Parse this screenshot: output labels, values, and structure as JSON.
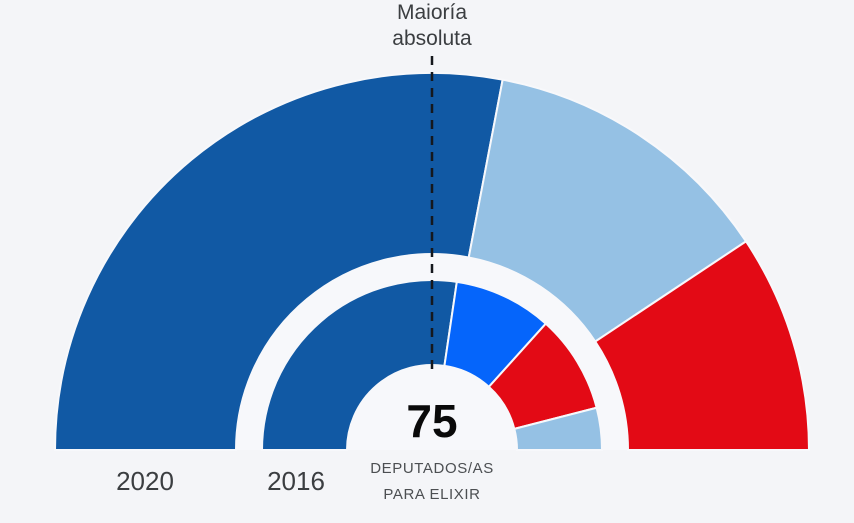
{
  "page": {
    "background": "#f4f5f8"
  },
  "majority": {
    "label": "Maioría absoluta"
  },
  "center": {
    "total": "75",
    "subtitle_line1": "DEPUTADOS/AS",
    "subtitle_line2": "PARA ELIXIR"
  },
  "chart_data": {
    "type": "pie",
    "variant": "parliament-hemicycle-half-donut-two-rings",
    "title": "",
    "total_seats": 75,
    "legend": "none",
    "majority_annotation": {
      "label": "Maioría absoluta",
      "seats_threshold": 38,
      "angle_deg": 90,
      "style": "vertical dashed line from top label to center hole"
    },
    "rings": [
      {
        "label": "2020",
        "position": "outer",
        "segments": [
          {
            "name": "dark-blue",
            "seats": 42,
            "color": "#1159a4"
          },
          {
            "name": "light-blue",
            "seats": 19,
            "color": "#95c1e4"
          },
          {
            "name": "red",
            "seats": 14,
            "color": "#e30a15"
          }
        ]
      },
      {
        "label": "2016",
        "position": "inner",
        "segments": [
          {
            "name": "dark-blue",
            "seats": 41,
            "color": "#1159a4"
          },
          {
            "name": "bright-blue",
            "seats": 14,
            "color": "#0565fb"
          },
          {
            "name": "red",
            "seats": 14,
            "color": "#e30a15"
          },
          {
            "name": "light-blue",
            "seats": 6,
            "color": "#95c1e4"
          }
        ]
      }
    ],
    "colors": {
      "background": "#f4f5f8",
      "ring_gap": "#f7f8fb",
      "segment_separator": "#f7f8fb",
      "majority_line": "#15181d",
      "center_number": "#0a0a0a",
      "caption_text": "#4c4f52",
      "label_text": "#3b3e41"
    }
  }
}
